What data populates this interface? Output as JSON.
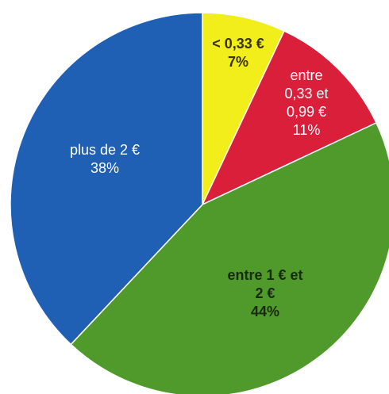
{
  "chart_data": {
    "type": "pie",
    "categories": [
      "< 0,33 €",
      "entre 0,33 et 0,99 €",
      "entre 1 € et 2 €",
      "plus de 2 €"
    ],
    "values": [
      7,
      11,
      44,
      38
    ],
    "value_labels": [
      "7%",
      "11%",
      "44%",
      "38%"
    ],
    "colors": [
      "#f2ee1c",
      "#d91f3a",
      "#4f9a2b",
      "#1f5fb4"
    ]
  }
}
